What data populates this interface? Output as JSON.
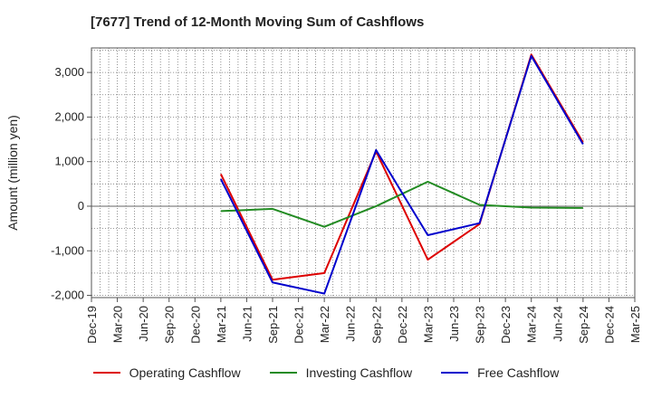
{
  "chart_data": {
    "type": "line",
    "title": "[7677]  Trend of 12-Month Moving Sum of Cashflows",
    "xlabel": "",
    "ylabel": "Amount (million yen)",
    "categories": [
      "Dec-19",
      "Mar-20",
      "Jun-20",
      "Sep-20",
      "Dec-20",
      "Mar-21",
      "Jun-21",
      "Sep-21",
      "Dec-21",
      "Mar-22",
      "Jun-22",
      "Sep-22",
      "Dec-22",
      "Mar-23",
      "Jun-23",
      "Sep-23",
      "Dec-23",
      "Mar-24",
      "Jun-24",
      "Sep-24",
      "Dec-24",
      "Mar-25"
    ],
    "ylim": [
      -2050,
      3550
    ],
    "yticks": [
      -2000,
      -1000,
      0,
      1000,
      2000,
      3000
    ],
    "ytick_labels": [
      "-2,000",
      "-1,000",
      "0",
      "1,000",
      "2,000",
      "3,000"
    ],
    "grid": true,
    "legend_position": "bottom",
    "series": [
      {
        "name": "Operating Cashflow",
        "color": "#dd0000",
        "points": [
          [
            "Mar-21",
            720
          ],
          [
            "Sep-21",
            -1650
          ],
          [
            "Mar-22",
            -1500
          ],
          [
            "Sep-22",
            1230
          ],
          [
            "Mar-23",
            -1200
          ],
          [
            "Sep-23",
            -400
          ],
          [
            "Mar-24",
            3400
          ],
          [
            "Sep-24",
            1430
          ]
        ]
      },
      {
        "name": "Investing Cashflow",
        "color": "#228B22",
        "points": [
          [
            "Mar-21",
            -110
          ],
          [
            "Sep-21",
            -60
          ],
          [
            "Mar-22",
            -460
          ],
          [
            "Sep-22",
            0
          ],
          [
            "Mar-23",
            550
          ],
          [
            "Sep-23",
            30
          ],
          [
            "Mar-24",
            -30
          ],
          [
            "Sep-24",
            -40
          ]
        ]
      },
      {
        "name": "Free Cashflow",
        "color": "#0000cc",
        "points": [
          [
            "Mar-21",
            610
          ],
          [
            "Sep-21",
            -1710
          ],
          [
            "Mar-22",
            -1960
          ],
          [
            "Sep-22",
            1260
          ],
          [
            "Mar-23",
            -650
          ],
          [
            "Sep-23",
            -380
          ],
          [
            "Mar-24",
            3370
          ],
          [
            "Sep-24",
            1390
          ]
        ]
      }
    ]
  }
}
